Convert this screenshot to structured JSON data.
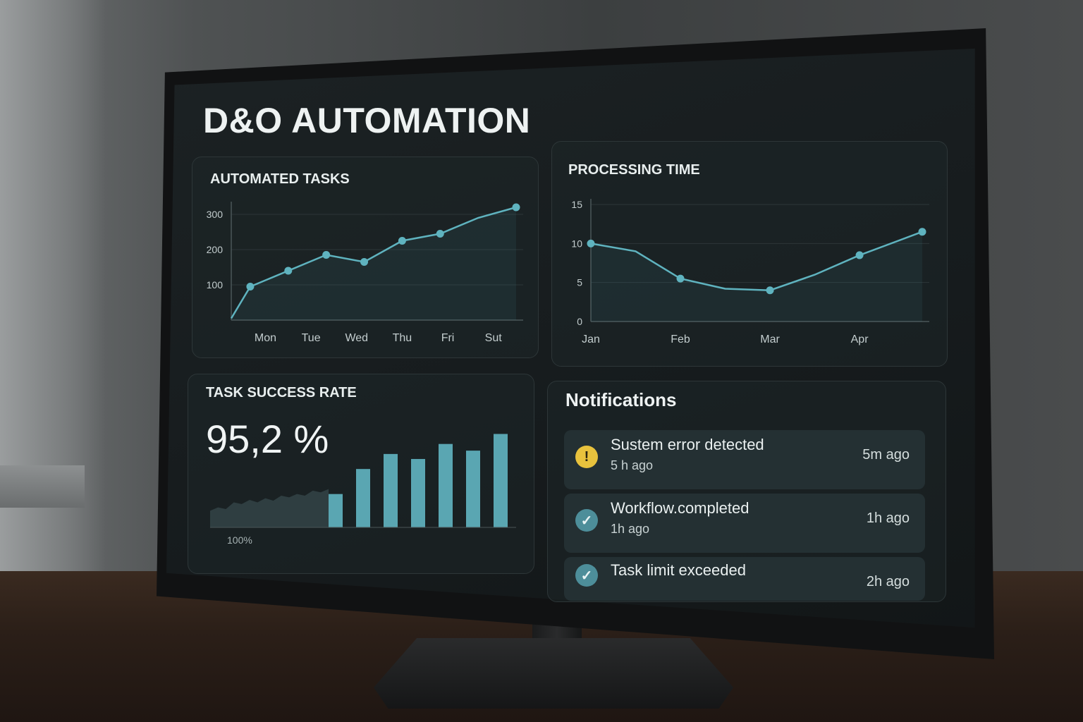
{
  "app": {
    "title": "D&O AUTOMATION"
  },
  "cards": {
    "automated_tasks": {
      "title": "AUTOMATED TASKS"
    },
    "processing_time": {
      "title": "PROCESSING TIME"
    },
    "task_success_rate": {
      "title": "TASK SUCCESS RATE",
      "value": "95,2 %",
      "footer": "100%"
    },
    "notifications": {
      "title": "Notifications",
      "items": [
        {
          "icon": "warning-icon",
          "title": "Sustem error detected",
          "subtitle": "5 h ago",
          "time": "5m ago"
        },
        {
          "icon": "check-icon",
          "title": "Workflow.completed",
          "subtitle": "1h ago",
          "time": "1h ago"
        },
        {
          "icon": "check-icon",
          "title": "Task limit exceeded",
          "subtitle": "",
          "time": "2h ago"
        }
      ]
    }
  },
  "colors": {
    "accent": "#5fb3bf",
    "bar": "#5aa6b2",
    "warning": "#e8c23d",
    "ok": "#4d8e9a"
  },
  "chart_data": [
    {
      "type": "line",
      "title": "AUTOMATED TASKS",
      "categories": [
        "Mon",
        "Tue",
        "Wed",
        "Thu",
        "Fri",
        "Sut"
      ],
      "yticks": [
        100,
        200,
        300
      ],
      "x": [
        0,
        0.5,
        1.5,
        2.5,
        3.5,
        4.5,
        5.5,
        6.5,
        7.5
      ],
      "values": [
        5,
        95,
        140,
        185,
        165,
        225,
        245,
        290,
        320
      ],
      "markers": [
        1,
        2,
        3,
        4,
        5,
        6,
        8
      ],
      "ylim": [
        0,
        320
      ],
      "grid": true
    },
    {
      "type": "line",
      "title": "PROCESSING TIME",
      "categories": [
        "Jan",
        "Feb",
        "Mar",
        "Apr"
      ],
      "category_positions": [
        0,
        1,
        2,
        3
      ],
      "yticks": [
        0,
        5,
        10,
        15
      ],
      "x": [
        0,
        0.5,
        1,
        1.5,
        2,
        2.5,
        3,
        3.7
      ],
      "values": [
        10,
        9,
        5.5,
        4.2,
        4,
        6,
        8.5,
        11.5
      ],
      "markers": [
        0,
        2,
        4,
        6,
        7
      ],
      "ylim": [
        0,
        15
      ],
      "grid": true
    },
    {
      "type": "bar",
      "title": "TASK SUCCESS RATE",
      "background_series": [
        20,
        24,
        22,
        30,
        28,
        33,
        30,
        35,
        32,
        38,
        36,
        40,
        38,
        44,
        42,
        46
      ],
      "values": [
        40,
        70,
        88,
        82,
        100,
        92,
        112
      ],
      "ylim": [
        0,
        120
      ]
    }
  ]
}
